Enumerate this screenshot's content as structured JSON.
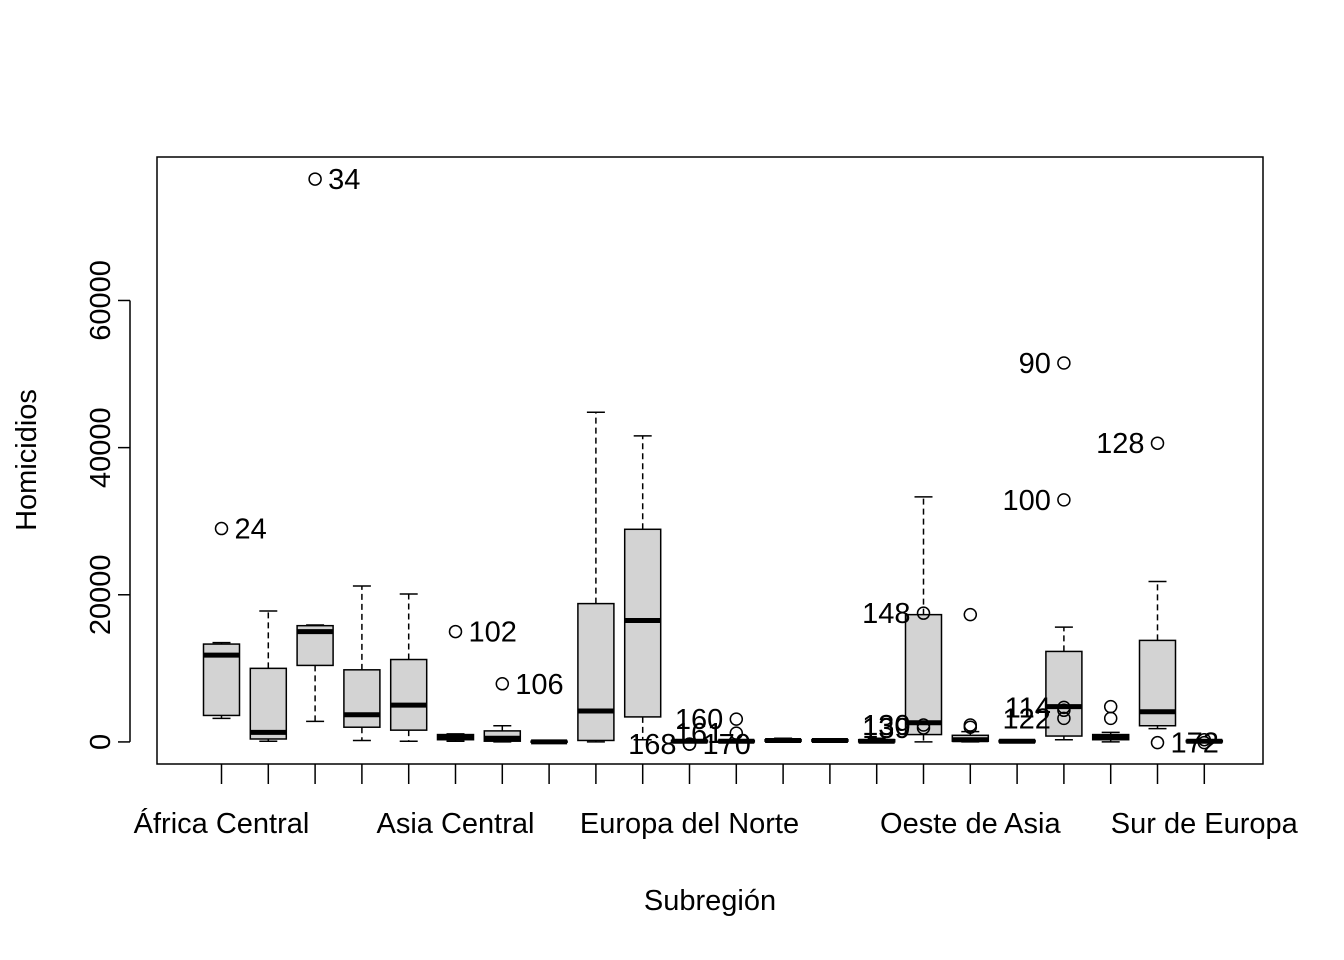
{
  "chart_data": {
    "type": "boxplot",
    "xlabel": "Subregión",
    "ylabel": "Homicidios",
    "ylim": [
      -3000,
      79500
    ],
    "yticks": [
      0,
      20000,
      40000,
      60000
    ],
    "ytick_labels": [
      "0",
      "20000",
      "40000",
      "60000"
    ],
    "tick_labels_shown": [
      {
        "index": 0,
        "label": "África Central"
      },
      {
        "index": 5,
        "label": "Asia Central"
      },
      {
        "index": 10,
        "label": "Europa del Norte"
      },
      {
        "index": 16,
        "label": "Oeste de Asia"
      },
      {
        "index": 21,
        "label": "Sur de Europa"
      }
    ],
    "groups": [
      {
        "min": 3200,
        "q1": 3600,
        "median": 11800,
        "q3": 13300,
        "max": 13500
      },
      {
        "min": 100,
        "q1": 400,
        "median": 1300,
        "q3": 10000,
        "max": 17800
      },
      {
        "min": 2800,
        "q1": 10400,
        "median": 15000,
        "q3": 15800,
        "max": 15900
      },
      {
        "min": 200,
        "q1": 2000,
        "median": 3700,
        "q3": 9800,
        "max": 21200
      },
      {
        "min": 100,
        "q1": 1600,
        "median": 5000,
        "q3": 11200,
        "max": 20100
      },
      {
        "min": 100,
        "q1": 300,
        "median": 700,
        "q3": 1000,
        "max": 1100
      },
      {
        "min": 0,
        "q1": 100,
        "median": 500,
        "q3": 1500,
        "max": 2200
      },
      {
        "min": 0,
        "q1": 0,
        "median": 0,
        "q3": 100,
        "max": 200
      },
      {
        "min": 0,
        "q1": 200,
        "median": 4200,
        "q3": 18800,
        "max": 44800
      },
      {
        "min": 300,
        "q1": 3400,
        "median": 16500,
        "q3": 28900,
        "max": 41600
      },
      {
        "min": 0,
        "q1": 0,
        "median": 100,
        "q3": 200,
        "max": 300
      },
      {
        "min": 0,
        "q1": 0,
        "median": 100,
        "q3": 200,
        "max": 300
      },
      {
        "min": 0,
        "q1": 100,
        "median": 200,
        "q3": 300,
        "max": 500
      },
      {
        "min": 0,
        "q1": 100,
        "median": 200,
        "q3": 300,
        "max": 400
      },
      {
        "min": 0,
        "q1": 0,
        "median": 100,
        "q3": 300,
        "max": 500
      },
      {
        "min": 0,
        "q1": 1000,
        "median": 2600,
        "q3": 17300,
        "max": 33300
      },
      {
        "min": 0,
        "q1": 100,
        "median": 300,
        "q3": 900,
        "max": 1400
      },
      {
        "min": 0,
        "q1": 0,
        "median": 100,
        "q3": 200,
        "max": 300
      },
      {
        "min": 300,
        "q1": 800,
        "median": 4800,
        "q3": 12300,
        "max": 15600
      },
      {
        "min": 0,
        "q1": 300,
        "median": 700,
        "q3": 1000,
        "max": 1300
      },
      {
        "min": 1800,
        "q1": 2200,
        "median": 4100,
        "q3": 13800,
        "max": 21800
      },
      {
        "min": 0,
        "q1": 0,
        "median": 100,
        "q3": 200,
        "max": 300
      }
    ],
    "outliers": [
      {
        "group": 0,
        "value": 29000,
        "label": "24",
        "side": "right"
      },
      {
        "group": 2,
        "value": 76500,
        "label": "34",
        "side": "right"
      },
      {
        "group": 5,
        "value": 15000,
        "label": "102",
        "side": "right"
      },
      {
        "group": 6,
        "value": 7900,
        "label": "106",
        "side": "right"
      },
      {
        "group": 11,
        "value": 3100,
        "label": "160",
        "side": "left"
      },
      {
        "group": 11,
        "value": 1200,
        "label": "161",
        "side": "left"
      },
      {
        "group": 10,
        "value": -300,
        "label": "168",
        "side": "left"
      },
      {
        "group": 10,
        "value": -300,
        "label": "170",
        "side": "right"
      },
      {
        "group": 15,
        "value": 17500,
        "label": "148",
        "side": "left"
      },
      {
        "group": 16,
        "value": 17300,
        "label": "",
        "side": "none"
      },
      {
        "group": 15,
        "value": 2300,
        "label": "130",
        "side": "left"
      },
      {
        "group": 15,
        "value": 1900,
        "label": "139",
        "side": "left"
      },
      {
        "group": 16,
        "value": 2300,
        "label": "",
        "side": "none"
      },
      {
        "group": 16,
        "value": 2000,
        "label": "",
        "side": "none"
      },
      {
        "group": 18,
        "value": 51500,
        "label": "90",
        "side": "left"
      },
      {
        "group": 18,
        "value": 32900,
        "label": "100",
        "side": "left"
      },
      {
        "group": 18,
        "value": 4700,
        "label": "114",
        "side": "left"
      },
      {
        "group": 18,
        "value": 4300,
        "label": "",
        "side": "none"
      },
      {
        "group": 18,
        "value": 3200,
        "label": "122",
        "side": "left"
      },
      {
        "group": 19,
        "value": 4800,
        "label": "",
        "side": "none"
      },
      {
        "group": 19,
        "value": 3200,
        "label": "",
        "side": "none"
      },
      {
        "group": 20,
        "value": 40600,
        "label": "128",
        "side": "left"
      },
      {
        "group": 20,
        "value": -100,
        "label": "172",
        "side": "right"
      },
      {
        "group": 21,
        "value": 300,
        "label": "",
        "side": "none"
      },
      {
        "group": 21,
        "value": -100,
        "label": "",
        "side": "none"
      }
    ]
  }
}
